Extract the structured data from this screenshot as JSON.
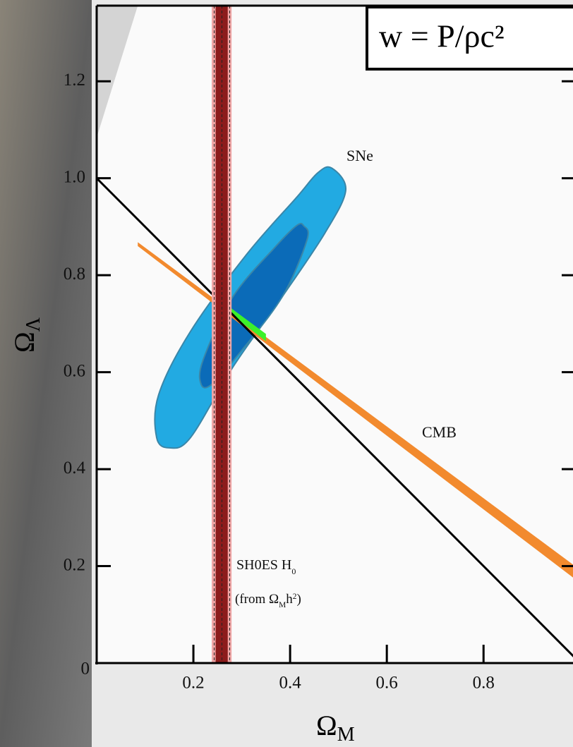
{
  "chart_data": {
    "type": "contour",
    "title": "w = P/ρc²",
    "x_label": {
      "text": "Ω",
      "sub": "M"
    },
    "y_label": {
      "text": "Ω",
      "sub": "Λ"
    },
    "xlim": [
      0,
      0.985
    ],
    "ylim": [
      0,
      1.356
    ],
    "xticks": [
      0.2,
      0.4,
      0.6,
      0.8
    ],
    "yticks": [
      0,
      0.2,
      0.4,
      0.6,
      0.8,
      {
        "value": 1,
        "label": "1.0"
      },
      1.2
    ],
    "regions": [
      {
        "color": "#d4d4d4",
        "smooth": false,
        "x": [
          0,
          0.085,
          0
        ],
        "y": [
          1.084,
          1.356,
          1.356
        ]
      },
      {
        "name": "SNe",
        "color": "#22aae2",
        "smooth": true,
        "x": [
          0.486,
          0.515,
          0.472,
          0.384,
          0.282,
          0.194,
          0.15,
          0.124,
          0.128,
          0.194,
          0.311,
          0.413,
          0.457
        ],
        "y": [
          1.021,
          0.975,
          0.887,
          0.756,
          0.611,
          0.465,
          0.444,
          0.465,
          0.553,
          0.684,
          0.844,
          0.96,
          1.011
        ]
      },
      {
        "color": "#0b6bb8",
        "smooth": true,
        "x": [
          0.428,
          0.435,
          0.384,
          0.296,
          0.238,
          0.216,
          0.22,
          0.282,
          0.369,
          0.413
        ],
        "y": [
          0.902,
          0.873,
          0.756,
          0.64,
          0.575,
          0.575,
          0.625,
          0.756,
          0.858,
          0.902
        ]
      },
      {
        "name": "CMB",
        "color": "#f28a2e",
        "smooth": false,
        "x": [
          0.085,
          0.5,
          1.0,
          1.0,
          0.5,
          0.085
        ],
        "y": [
          0.868,
          0.562,
          0.192,
          0.165,
          0.545,
          0.86
        ]
      },
      {
        "color": "#3cf02a",
        "smooth": false,
        "x": [
          0.24,
          0.35,
          0.35,
          0.24
        ],
        "y": [
          0.76,
          0.679,
          0.664,
          0.748
        ]
      }
    ],
    "bands": [
      {
        "name": "SH0ES",
        "x": [
          0.238,
          0.279
        ],
        "color": "#f0a6a6"
      },
      {
        "x": [
          0.246,
          0.271
        ],
        "color": "#8c1c1c"
      }
    ],
    "vlines": [
      0.243,
      0.259,
      0.275
    ],
    "lines": [
      {
        "x": [
          0,
          1
        ],
        "y": [
          1,
          0
        ],
        "color": "#000000"
      }
    ],
    "annotations": [
      {
        "parts": [
          {
            "text": "SNe"
          }
        ]
      },
      {
        "parts": [
          {
            "text": "CMB"
          }
        ]
      },
      {
        "parts": [
          {
            "text": "SH0ES H"
          },
          {
            "text": "0",
            "script": "sub"
          }
        ]
      },
      {
        "parts": [
          {
            "text": "(from Ω"
          },
          {
            "text": "M",
            "script": "sub"
          },
          {
            "text": "h"
          },
          {
            "text": "2",
            "script": "sup"
          },
          {
            "text": ")"
          }
        ]
      }
    ]
  }
}
